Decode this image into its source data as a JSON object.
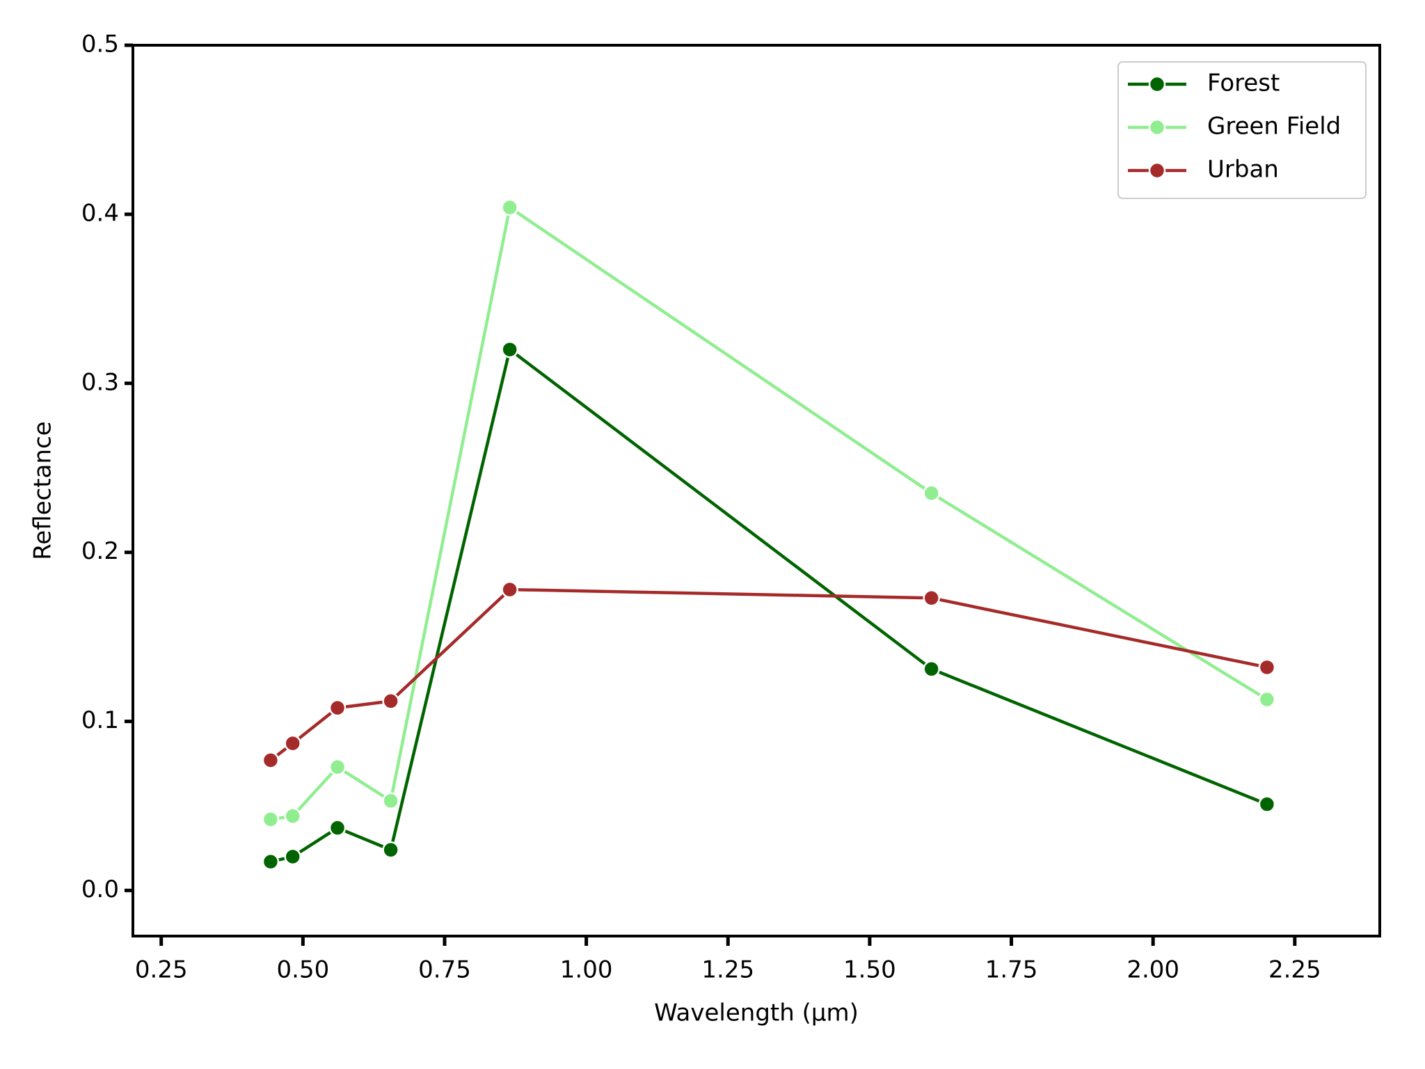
{
  "chart_data": {
    "type": "line",
    "xlabel": "Wavelength (μm)",
    "ylabel": "Reflectance",
    "x": [
      0.443,
      0.482,
      0.561,
      0.655,
      0.865,
      1.609,
      2.201
    ],
    "series": [
      {
        "name": "Forest",
        "color": "#006400",
        "values": [
          0.017,
          0.02,
          0.037,
          0.024,
          0.32,
          0.131,
          0.051
        ]
      },
      {
        "name": "Green Field",
        "color": "#90ee90",
        "values": [
          0.042,
          0.044,
          0.073,
          0.053,
          0.404,
          0.235,
          0.113
        ]
      },
      {
        "name": "Urban",
        "color": "#a52a2a",
        "values": [
          0.077,
          0.087,
          0.108,
          0.112,
          0.178,
          0.173,
          0.132
        ]
      }
    ],
    "xlim": [
      0.2,
      2.4
    ],
    "ylim": [
      -0.027,
      0.5
    ],
    "xticks": [
      0.25,
      {
        "value": 0.5,
        "label": "0.50"
      },
      0.75,
      {
        "value": 1.0,
        "label": "1.00"
      },
      1.25,
      {
        "value": 1.5,
        "label": "1.50"
      },
      1.75,
      {
        "value": 2.0,
        "label": "2.00"
      },
      2.25
    ],
    "yticks": [
      {
        "value": 0,
        "label": "0.0"
      },
      0.1,
      0.2,
      0.3,
      0.4,
      {
        "value": 0.5,
        "label": "0.5"
      }
    ],
    "legend": "upper right"
  }
}
